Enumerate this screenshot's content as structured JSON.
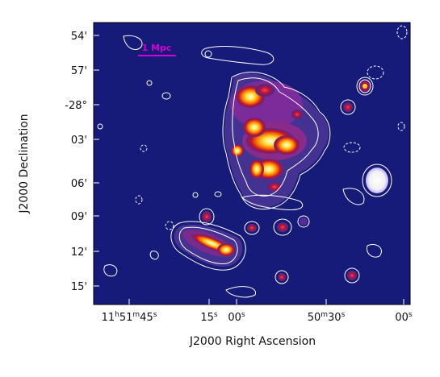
{
  "axes": {
    "x_title": "J2000 Right Ascension",
    "y_title": "J2000 Declination",
    "x_ticks": [
      {
        "h": "11",
        "hs": "h",
        "m": "51",
        "ms": "m",
        "s": "45",
        "ss": "s"
      },
      {
        "s": "15",
        "ss": "s"
      },
      {
        "s": "00",
        "ss": "s"
      },
      {
        "m": "50",
        "ms": "m",
        "s": "30",
        "ss": "s"
      },
      {
        "s": "00",
        "ss": "s"
      }
    ],
    "y_ticks": [
      "54'",
      "57'",
      "-28°",
      "03'",
      "06'",
      "09'",
      "12'",
      "15'"
    ]
  },
  "scale_bar": {
    "label": "1 Mpc",
    "color": "#d400d4"
  },
  "colors": {
    "background": "#161a78",
    "contour": "#ffffff",
    "emission_low": "#6a2a9a",
    "emission_mid": "#c0102a",
    "emission_high": "#ff8a00",
    "emission_peak": "#ffff60"
  }
}
